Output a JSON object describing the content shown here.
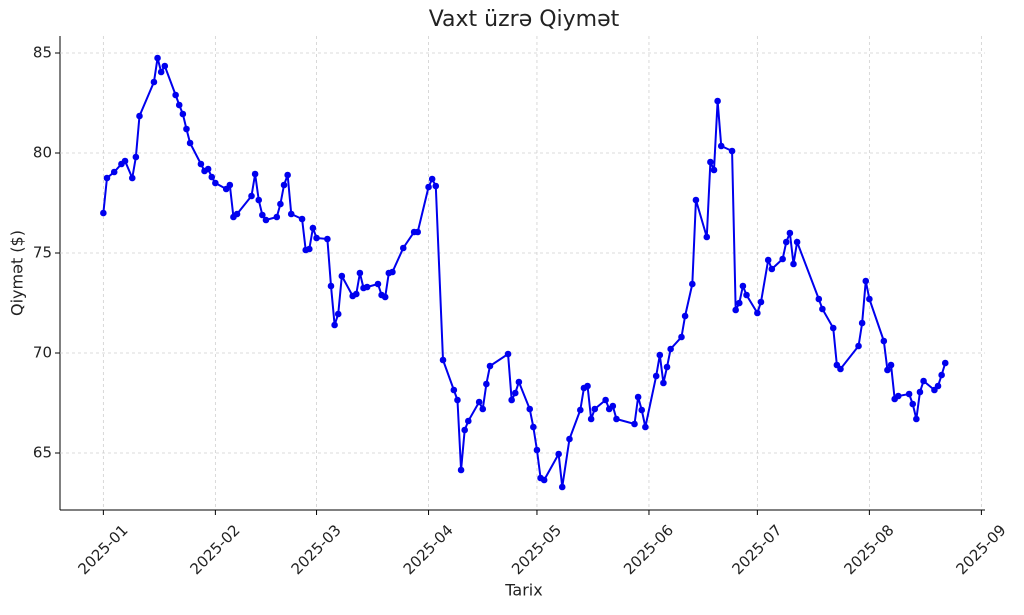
{
  "chart_data": {
    "type": "line",
    "title": "Vaxt üzrə Qiymət",
    "xlabel": "Tarix",
    "ylabel": "Qiymət ($)",
    "color": "#0000ee",
    "grid": true,
    "xlim": [
      "2024-12-20",
      "2025-09-02"
    ],
    "xticks": [
      "2025-01",
      "2025-02",
      "2025-03",
      "2025-04",
      "2025-05",
      "2025-06",
      "2025-07",
      "2025-08",
      "2025-09"
    ],
    "ylim": [
      62.15,
      85.85
    ],
    "yticks": [
      65,
      70,
      75,
      80,
      85
    ],
    "x": [
      "2025-01-01",
      "2025-01-02",
      "2025-01-04",
      "2025-01-06",
      "2025-01-07",
      "2025-01-09",
      "2025-01-10",
      "2025-01-11",
      "2025-01-15",
      "2025-01-16",
      "2025-01-17",
      "2025-01-18",
      "2025-01-21",
      "2025-01-22",
      "2025-01-23",
      "2025-01-24",
      "2025-01-25",
      "2025-01-28",
      "2025-01-29",
      "2025-01-30",
      "2025-01-31",
      "2025-02-01",
      "2025-02-04",
      "2025-02-05",
      "2025-02-06",
      "2025-02-07",
      "2025-02-11",
      "2025-02-12",
      "2025-02-13",
      "2025-02-14",
      "2025-02-15",
      "2025-02-18",
      "2025-02-19",
      "2025-02-20",
      "2025-02-21",
      "2025-02-22",
      "2025-02-25",
      "2025-02-26",
      "2025-02-27",
      "2025-02-28",
      "2025-03-01",
      "2025-03-04",
      "2025-03-05",
      "2025-03-06",
      "2025-03-07",
      "2025-03-08",
      "2025-03-11",
      "2025-03-12",
      "2025-03-13",
      "2025-03-14",
      "2025-03-15",
      "2025-03-18",
      "2025-03-19",
      "2025-03-20",
      "2025-03-21",
      "2025-03-22",
      "2025-03-25",
      "2025-03-28",
      "2025-03-29",
      "2025-04-01",
      "2025-04-02",
      "2025-04-03",
      "2025-04-05",
      "2025-04-08",
      "2025-04-09",
      "2025-04-10",
      "2025-04-11",
      "2025-04-12",
      "2025-04-15",
      "2025-04-16",
      "2025-04-17",
      "2025-04-18",
      "2025-04-23",
      "2025-04-24",
      "2025-04-25",
      "2025-04-26",
      "2025-04-29",
      "2025-04-30",
      "2025-05-01",
      "2025-05-02",
      "2025-05-03",
      "2025-05-07",
      "2025-05-08",
      "2025-05-10",
      "2025-05-13",
      "2025-05-14",
      "2025-05-15",
      "2025-05-16",
      "2025-05-17",
      "2025-05-20",
      "2025-05-21",
      "2025-05-22",
      "2025-05-23",
      "2025-05-28",
      "2025-05-29",
      "2025-05-30",
      "2025-05-31",
      "2025-06-03",
      "2025-06-04",
      "2025-06-05",
      "2025-06-06",
      "2025-06-07",
      "2025-06-10",
      "2025-06-11",
      "2025-06-13",
      "2025-06-14",
      "2025-06-17",
      "2025-06-18",
      "2025-06-19",
      "2025-06-20",
      "2025-06-21",
      "2025-06-24",
      "2025-06-25",
      "2025-06-26",
      "2025-06-27",
      "2025-06-28",
      "2025-07-01",
      "2025-07-02",
      "2025-07-04",
      "2025-07-05",
      "2025-07-08",
      "2025-07-09",
      "2025-07-10",
      "2025-07-11",
      "2025-07-12",
      "2025-07-18",
      "2025-07-19",
      "2025-07-22",
      "2025-07-23",
      "2025-07-24",
      "2025-07-29",
      "2025-07-30",
      "2025-07-31",
      "2025-08-01",
      "2025-08-05",
      "2025-08-06",
      "2025-08-07",
      "2025-08-08",
      "2025-08-09",
      "2025-08-12",
      "2025-08-13",
      "2025-08-14",
      "2025-08-15",
      "2025-08-16",
      "2025-08-19",
      "2025-08-20",
      "2025-08-21",
      "2025-08-22"
    ],
    "values": [
      77.0,
      78.75,
      79.05,
      79.45,
      79.6,
      78.75,
      79.8,
      81.85,
      83.55,
      84.75,
      84.05,
      84.35,
      82.9,
      82.4,
      81.95,
      81.2,
      80.5,
      79.45,
      79.1,
      79.2,
      78.8,
      78.5,
      78.2,
      78.4,
      76.8,
      76.95,
      77.85,
      78.95,
      77.65,
      76.9,
      76.65,
      76.8,
      77.45,
      78.4,
      78.9,
      76.95,
      76.7,
      75.15,
      75.2,
      76.25,
      75.75,
      75.7,
      73.35,
      71.4,
      71.95,
      73.85,
      72.85,
      72.95,
      74.0,
      73.25,
      73.3,
      73.45,
      72.9,
      72.8,
      74.0,
      74.05,
      75.25,
      76.05,
      76.05,
      78.3,
      78.7,
      78.35,
      69.65,
      68.15,
      67.65,
      64.15,
      66.15,
      66.6,
      67.55,
      67.2,
      68.45,
      69.35,
      69.95,
      67.65,
      68.0,
      68.55,
      67.2,
      66.3,
      65.15,
      63.75,
      63.65,
      64.95,
      63.3,
      65.7,
      67.15,
      68.25,
      68.35,
      66.7,
      67.2,
      67.65,
      67.2,
      67.35,
      66.7,
      66.45,
      67.8,
      67.15,
      66.3,
      68.85,
      69.9,
      68.5,
      69.3,
      70.2,
      70.8,
      71.85,
      73.45,
      77.65,
      75.8,
      79.55,
      79.15,
      82.6,
      80.35,
      80.1,
      72.15,
      72.5,
      73.35,
      72.9,
      72.0,
      72.55,
      74.65,
      74.2,
      74.7,
      75.55,
      76.0,
      74.45,
      75.55,
      72.7,
      72.2,
      71.25,
      69.4,
      69.2,
      70.35,
      71.5,
      73.6,
      72.7,
      70.6,
      69.15,
      69.4,
      67.7,
      67.85,
      67.95,
      67.45,
      66.7,
      68.05,
      68.6,
      68.15,
      68.35,
      68.9,
      69.5
    ]
  }
}
